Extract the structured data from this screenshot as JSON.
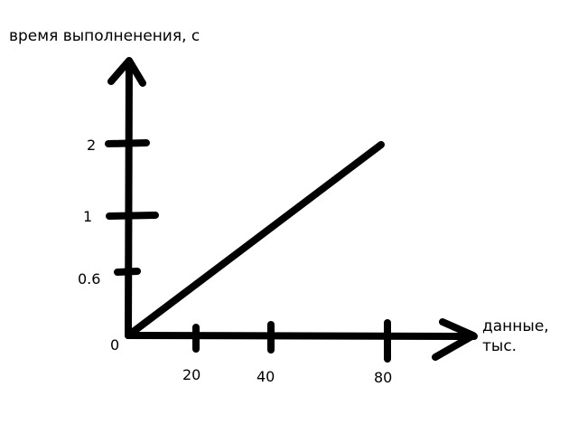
{
  "chart_data": {
    "type": "line",
    "title": "",
    "ylabel": "время выполненения, с",
    "xlabel_lines": [
      "данные,",
      "тыс."
    ],
    "origin_label": "0",
    "x_ticks": [
      {
        "value": 20,
        "label": "20"
      },
      {
        "value": 40,
        "label": "40"
      },
      {
        "value": 80,
        "label": "80"
      }
    ],
    "y_ticks": [
      {
        "value": 0.6,
        "label": "0.6"
      },
      {
        "value": 1,
        "label": "1"
      },
      {
        "value": 2,
        "label": "2"
      }
    ],
    "series": [
      {
        "x": [
          0,
          80
        ],
        "y": [
          0,
          2
        ]
      }
    ],
    "line_color": "#000000",
    "grid": false,
    "legend": "none"
  }
}
